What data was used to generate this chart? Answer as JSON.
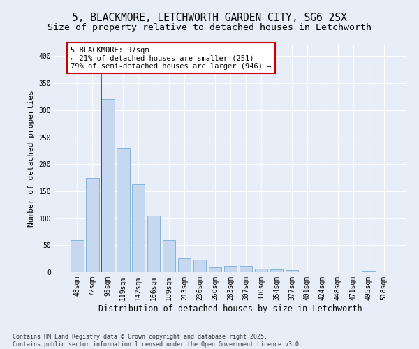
{
  "title": "5, BLACKMORE, LETCHWORTH GARDEN CITY, SG6 2SX",
  "subtitle": "Size of property relative to detached houses in Letchworth",
  "xlabel": "Distribution of detached houses by size in Letchworth",
  "ylabel": "Number of detached properties",
  "categories": [
    "48sqm",
    "72sqm",
    "95sqm",
    "119sqm",
    "142sqm",
    "166sqm",
    "189sqm",
    "213sqm",
    "236sqm",
    "260sqm",
    "283sqm",
    "307sqm",
    "330sqm",
    "354sqm",
    "377sqm",
    "401sqm",
    "424sqm",
    "448sqm",
    "471sqm",
    "495sqm",
    "518sqm"
  ],
  "values": [
    60,
    175,
    320,
    230,
    163,
    105,
    60,
    26,
    23,
    9,
    11,
    11,
    6,
    5,
    4,
    1,
    1,
    1,
    0,
    2,
    1
  ],
  "bar_color": "#c5d8f0",
  "bar_edge_color": "#7aadd4",
  "vline_x_index": 2,
  "vline_color": "#cc0000",
  "annotation_text": "5 BLACKMORE: 97sqm\n← 21% of detached houses are smaller (251)\n79% of semi-detached houses are larger (946) →",
  "annotation_box_color": "#ffffff",
  "annotation_box_edge": "#cc0000",
  "ylim": [
    0,
    420
  ],
  "yticks": [
    0,
    50,
    100,
    150,
    200,
    250,
    300,
    350,
    400
  ],
  "background_color": "#e8eef8",
  "grid_color": "#ffffff",
  "footnote": "Contains HM Land Registry data © Crown copyright and database right 2025.\nContains public sector information licensed under the Open Government Licence v3.0.",
  "title_fontsize": 10.5,
  "subtitle_fontsize": 9.5,
  "xlabel_fontsize": 8.5,
  "ylabel_fontsize": 8,
  "tick_fontsize": 7,
  "annot_fontsize": 7.5,
  "footnote_fontsize": 6
}
